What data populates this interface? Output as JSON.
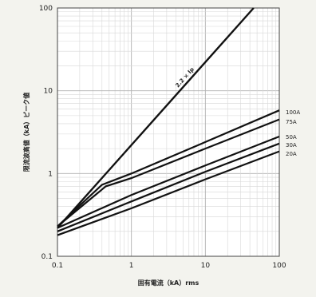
{
  "chart_data": {
    "type": "line",
    "x_scale": "log",
    "y_scale": "log",
    "xlim": [
      0.1,
      100
    ],
    "ylim": [
      0.1,
      100
    ],
    "grid": true,
    "xlabel": "固有電流（kA）rms",
    "ylabel": "限流波高値（kA）ピーク値",
    "x_ticks": [
      "0.1",
      "1",
      "10",
      "100"
    ],
    "y_ticks": [
      "0.1",
      "1",
      "10",
      "100"
    ],
    "reference_line": {
      "label": "2.2 × Ip",
      "points": [
        [
          0.1,
          0.22
        ],
        [
          45,
          100
        ]
      ]
    },
    "series": [
      {
        "name": "100A",
        "points": [
          [
            0.1,
            0.23
          ],
          [
            0.4,
            0.73
          ],
          [
            1,
            1.0
          ],
          [
            10,
            2.4
          ],
          [
            100,
            5.8
          ]
        ]
      },
      {
        "name": "75A",
        "points": [
          [
            0.1,
            0.23
          ],
          [
            0.45,
            0.7
          ],
          [
            1,
            0.88
          ],
          [
            10,
            2.0
          ],
          [
            100,
            4.5
          ]
        ]
      },
      {
        "name": "50A",
        "points": [
          [
            0.1,
            0.22
          ],
          [
            1,
            0.55
          ],
          [
            10,
            1.25
          ],
          [
            100,
            2.8
          ]
        ]
      },
      {
        "name": "30A",
        "points": [
          [
            0.1,
            0.2
          ],
          [
            1,
            0.46
          ],
          [
            10,
            1.05
          ],
          [
            100,
            2.3
          ]
        ]
      },
      {
        "name": "20A",
        "points": [
          [
            0.1,
            0.18
          ],
          [
            1,
            0.38
          ],
          [
            10,
            0.85
          ],
          [
            100,
            1.85
          ]
        ]
      }
    ]
  }
}
